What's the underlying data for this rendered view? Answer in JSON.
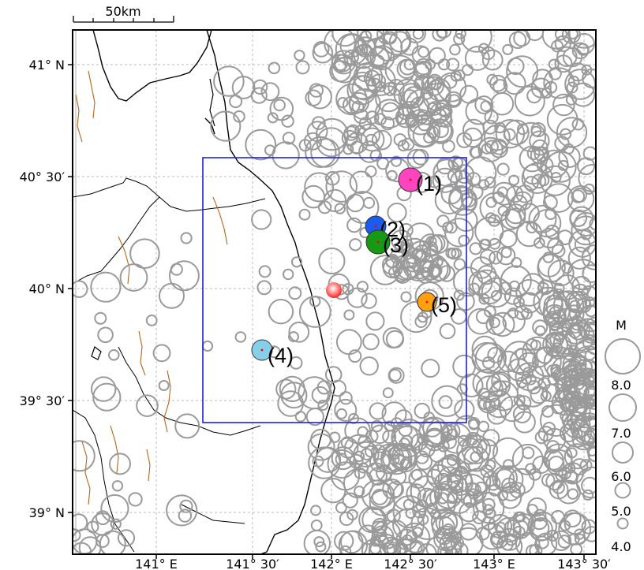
{
  "scale_bar": {
    "label": "50km"
  },
  "lat_ticks": [
    "41° N",
    "40° 30′",
    "40° N",
    "39° 30′",
    "39° N"
  ],
  "lon_ticks": [
    "141° E",
    "141° 30′",
    "142° E",
    "142° 30′",
    "143° E",
    "143° 30′"
  ],
  "legend": {
    "title": "M",
    "magnitudes": [
      "8.0",
      "7.0",
      "6.0",
      "5.0",
      "4.0"
    ]
  },
  "events": [
    {
      "id": "1",
      "label": "(1)",
      "color": "#ff44c0"
    },
    {
      "id": "2",
      "label": "(2)",
      "color": "#1a5cf0"
    },
    {
      "id": "3",
      "label": "(3)",
      "color": "#169a16"
    },
    {
      "id": "4",
      "label": "(4)",
      "color": "#87ceeb"
    },
    {
      "id": "5",
      "label": "(5)",
      "color": "#ffa010"
    }
  ],
  "epicenter": {
    "color": "#ff3030"
  },
  "colors": {
    "frame": "#000000",
    "grid": "#bbbbbb",
    "circle": "#9a9a9a",
    "study_box": "#2020dd",
    "faults": "#b5651d"
  }
}
